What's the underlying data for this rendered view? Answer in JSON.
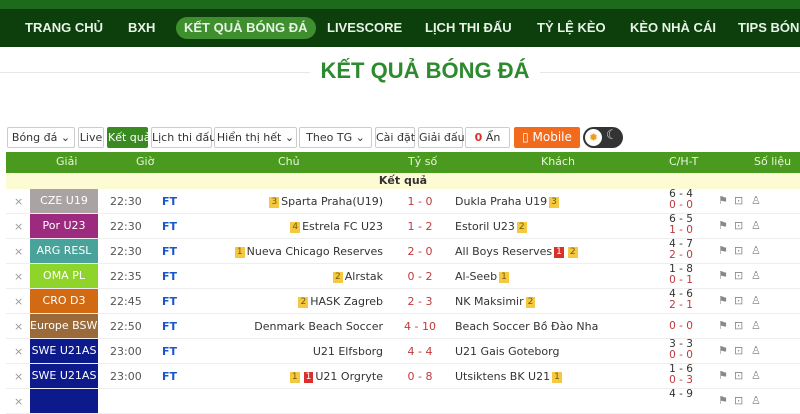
{
  "nav": {
    "items": [
      "TRANG CHỦ",
      "BXH",
      "KẾT QUẢ BÓNG ĐÁ",
      "LIVESCORE",
      "LỊCH THI ĐẤU",
      "TỶ LỆ KÈO",
      "KÈO NHÀ CÁI",
      "TIPS BÓNG"
    ],
    "active": 2
  },
  "page_title": "KẾT QUẢ BÓNG ĐÁ",
  "toolbar": {
    "sport": "Bóng đá",
    "live": "Live",
    "results": "Kết quả",
    "schedule": "Lịch thi đấu",
    "show": "Hiển thị hết",
    "sort": "Theo TG",
    "settings": "Cài đặt",
    "league": "Giải đấu",
    "hidden_count": "0",
    "hidden_label": "Ẩn",
    "mobile": "Mobile"
  },
  "colors": {
    "nav": "#0c3f0c",
    "accent": "#4a9a1f",
    "score": "#c0393b",
    "ft": "#1a56c8",
    "mobile": "#f26a1b"
  },
  "table": {
    "headers": {
      "league": "Giải",
      "time": "Giờ",
      "home": "Chủ",
      "score": "Tỷ số",
      "away": "Khách",
      "cht": "C/H-T",
      "stats": "Số liệu"
    },
    "group": "Kết quả",
    "rows": [
      {
        "league": "CZE U19",
        "color": "#a9a3a3",
        "time": "22:30",
        "status": "FT",
        "home": "Sparta Praha(U19)",
        "home_badges": [
          {
            "t": "3",
            "c": "y"
          }
        ],
        "score": "1 - 0",
        "away": "Dukla Praha U19",
        "away_badges": [
          {
            "t": "3",
            "c": "y"
          }
        ],
        "corners": "6 - 4",
        "ht": "0 - 0"
      },
      {
        "league": "Por U23",
        "color": "#9c2a7e",
        "time": "22:30",
        "status": "FT",
        "home": "Estrela FC U23",
        "home_badges": [
          {
            "t": "4",
            "c": "y"
          }
        ],
        "score": "1 - 2",
        "away": "Estoril U23",
        "away_badges": [
          {
            "t": "2",
            "c": "y"
          }
        ],
        "corners": "6 - 5",
        "ht": "1 - 0"
      },
      {
        "league": "ARG RESL",
        "color": "#4aa39a",
        "time": "22:30",
        "status": "FT",
        "home": "Nueva Chicago Reserves",
        "home_badges": [
          {
            "t": "1",
            "c": "y"
          }
        ],
        "score": "2 - 0",
        "away": "All Boys Reserves",
        "away_badges": [
          {
            "t": "1",
            "c": "r"
          },
          {
            "t": "2",
            "c": "y"
          }
        ],
        "corners": "4 - 7",
        "ht": "2 - 0"
      },
      {
        "league": "OMA PL",
        "color": "#8fd42a",
        "time": "22:35",
        "status": "FT",
        "home": "Alrstak",
        "home_badges": [
          {
            "t": "2",
            "c": "y"
          }
        ],
        "score": "0 - 2",
        "away": "Al-Seeb",
        "away_badges": [
          {
            "t": "1",
            "c": "y"
          }
        ],
        "corners": "1 - 8",
        "ht": "0 - 1"
      },
      {
        "league": "CRO D3",
        "color": "#d16a12",
        "time": "22:45",
        "status": "FT",
        "home": "HASK Zagreb",
        "home_badges": [
          {
            "t": "2",
            "c": "y"
          }
        ],
        "score": "2 - 3",
        "away": "NK Maksimir",
        "away_badges": [
          {
            "t": "2",
            "c": "y"
          }
        ],
        "corners": "4 - 6",
        "ht": "2 - 1"
      },
      {
        "league": "Europe BSWCP",
        "color": "#9a6a3a",
        "time": "22:50",
        "status": "FT",
        "home": "Denmark Beach Soccer",
        "home_badges": [],
        "score": "4 - 10",
        "away": "Beach Soccer Bồ Đào Nha",
        "away_badges": [],
        "corners": "",
        "ht": "0 - 0"
      },
      {
        "league": "SWE U21AS",
        "color": "#0d1a8c",
        "time": "23:00",
        "status": "FT",
        "home": "U21 Elfsborg",
        "home_badges": [],
        "score": "4 - 4",
        "away": "U21 Gais Goteborg",
        "away_badges": [],
        "corners": "3 - 3",
        "ht": "0 - 0"
      },
      {
        "league": "SWE U21AS",
        "color": "#0d1a8c",
        "time": "23:00",
        "status": "FT",
        "home": "U21 Orgryte",
        "home_badges": [
          {
            "t": "1",
            "c": "y"
          },
          {
            "t": "1",
            "c": "r"
          }
        ],
        "score": "0 - 8",
        "away": "Utsiktens BK U21",
        "away_badges": [
          {
            "t": "1",
            "c": "y"
          }
        ],
        "corners": "1 - 6",
        "ht": "0 - 3"
      },
      {
        "league": "",
        "color": "#0d1a8c",
        "time": "",
        "status": "",
        "home": "",
        "home_badges": [],
        "score": "",
        "away": "",
        "away_badges": [],
        "corners": "4 - 9",
        "ht": ""
      }
    ]
  }
}
